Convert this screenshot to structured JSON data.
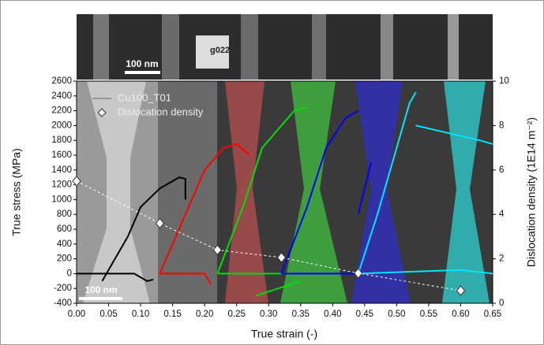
{
  "chart_data": {
    "type": "line",
    "x_label": "True strain (-)",
    "y_label": "True stress (MPa)",
    "y2_label": "Dislocation density (1E14 m⁻²)",
    "xlim": [
      0,
      0.65
    ],
    "xticks": [
      {
        "value": 0,
        "label": "0.00"
      },
      {
        "value": 0.05,
        "label": "0.05"
      },
      {
        "value": 0.1,
        "label": "0.10"
      },
      {
        "value": 0.15,
        "label": "0.15"
      },
      {
        "value": 0.2,
        "label": "0.20"
      },
      {
        "value": 0.25,
        "label": "0.25"
      },
      {
        "value": 0.3,
        "label": "0.30"
      },
      {
        "value": 0.35,
        "label": "0.35"
      },
      {
        "value": 0.4,
        "label": "0.40"
      },
      {
        "value": 0.45,
        "label": "0.45"
      },
      {
        "value": 0.5,
        "label": "0.50"
      },
      {
        "value": 0.55,
        "label": "0.55"
      },
      {
        "value": 0.6,
        "label": "0.60"
      },
      {
        "value": 0.65,
        "label": "0.65"
      }
    ],
    "ylim": [
      -400,
      2600
    ],
    "yticks": [
      -400,
      -200,
      0,
      200,
      400,
      600,
      800,
      1000,
      1200,
      1400,
      1600,
      1800,
      2000,
      2200,
      2400,
      2600
    ],
    "y2lim": [
      0,
      10
    ],
    "y2ticks": [
      0,
      2,
      4,
      6,
      8,
      10
    ],
    "legend": "top-left",
    "annotations": [
      "100 nm",
      "g022",
      "100 nm"
    ],
    "series": [
      {
        "name": "Cu100_T01",
        "color": "#888888",
        "segments": [
          {
            "color": "#000000",
            "x": [
              0,
              0.09,
              0.11,
              0.12,
              null,
              0.04,
              0.08,
              0.1,
              0.13,
              0.16,
              0.17,
              0.17
            ],
            "values": [
              0,
              0,
              -100,
              -80,
              null,
              -100,
              500,
              900,
              1150,
              1300,
              1280,
              1000
            ]
          },
          {
            "color": "#ff0000",
            "x": [
              0.13,
              0.2,
              0.21,
              null,
              0.13,
              0.17,
              0.2,
              0.23,
              0.25,
              0.27
            ],
            "values": [
              0,
              0,
              -150,
              null,
              0,
              800,
              1400,
              1700,
              1750,
              1600
            ]
          },
          {
            "color": "#00e000",
            "x": [
              0.22,
              0.33,
              null,
              0.22,
              0.26,
              0.29,
              0.32,
              0.34,
              0.36,
              null,
              0.28,
              0.35
            ],
            "values": [
              0,
              0,
              null,
              0,
              900,
              1700,
              2000,
              2200,
              2250,
              null,
              -300,
              -100
            ]
          },
          {
            "color": "#0000ff",
            "x": [
              0.32,
              0.44,
              null,
              0.32,
              0.36,
              0.39,
              0.42,
              0.44,
              null,
              0.44,
              0.46
            ],
            "values": [
              0,
              0,
              null,
              0,
              900,
              1700,
              2100,
              2200,
              null,
              800,
              1500
            ]
          },
          {
            "color": "#00e5ff",
            "x": [
              0.44,
              0.6,
              0.65,
              null,
              0.44,
              0.47,
              0.5,
              0.52,
              0.53,
              null,
              0.53,
              0.58,
              0.63,
              0.65
            ],
            "values": [
              0,
              50,
              0,
              null,
              0,
              800,
              1700,
              2300,
              2450,
              null,
              2000,
              1900,
              1800,
              1750
            ]
          }
        ]
      },
      {
        "name": "Dislocation density",
        "axis": "y2",
        "color": "#ffffff",
        "marker": "diamond",
        "x": [
          0,
          0.13,
          0.22,
          0.32,
          0.44,
          0.6
        ],
        "values": [
          5.5,
          3.6,
          2.4,
          2.06,
          1.35,
          0.57
        ]
      }
    ]
  }
}
